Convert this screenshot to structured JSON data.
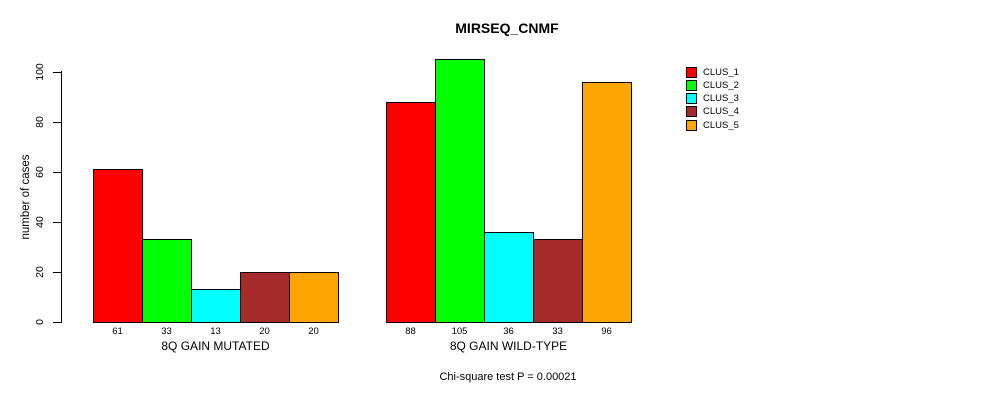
{
  "title": "MIRSEQ_CNMF",
  "subtitle": "Chi-square test P = 0.00021",
  "y_axis": {
    "label": "number of cases",
    "ticks": [
      0,
      20,
      40,
      60,
      80,
      100
    ]
  },
  "legend": {
    "position": "right",
    "items": [
      {
        "label": "CLUS_1",
        "color": "#FF0000"
      },
      {
        "label": "CLUS_2",
        "color": "#00FF00"
      },
      {
        "label": "CLUS_3",
        "color": "#00FFFF"
      },
      {
        "label": "CLUS_4",
        "color": "#A52A2A"
      },
      {
        "label": "CLUS_5",
        "color": "#FFA500"
      }
    ]
  },
  "chart_data": {
    "type": "bar",
    "title": "MIRSEQ_CNMF",
    "xlabel": "",
    "ylabel": "number of cases",
    "ylim": [
      0,
      100
    ],
    "grid": false,
    "legend_position": "right",
    "annotation": "Chi-square test P = 0.00021",
    "series_names": [
      "CLUS_1",
      "CLUS_2",
      "CLUS_3",
      "CLUS_4",
      "CLUS_5"
    ],
    "colors": [
      "#FF0000",
      "#00FF00",
      "#00FFFF",
      "#A52A2A",
      "#FFA500"
    ],
    "groups": [
      {
        "label": "8Q GAIN MUTATED",
        "values": [
          61,
          33,
          13,
          20,
          20
        ]
      },
      {
        "label": "8Q GAIN WILD-TYPE",
        "values": [
          88,
          105,
          36,
          33,
          96
        ]
      }
    ],
    "bar_value_labels_shown": true
  }
}
